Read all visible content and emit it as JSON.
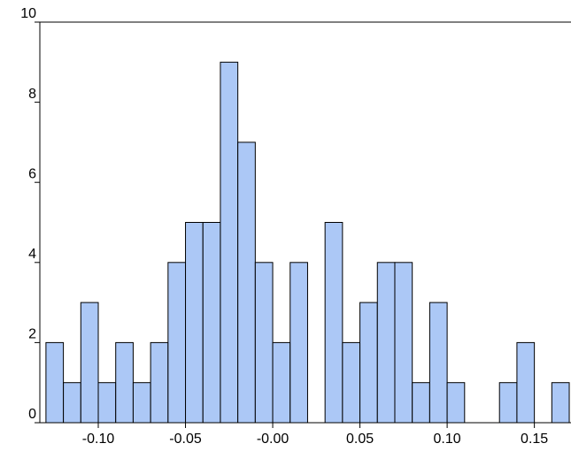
{
  "chart_data": {
    "type": "histogram",
    "bins": [
      -0.13,
      -0.12,
      -0.11,
      -0.1,
      -0.09,
      -0.08,
      -0.07,
      -0.06,
      -0.05,
      -0.04,
      -0.03,
      -0.02,
      -0.01,
      0.0,
      0.01,
      0.02,
      0.03,
      0.04,
      0.05,
      0.06,
      0.07,
      0.08,
      0.09,
      0.1,
      0.11,
      0.12,
      0.13,
      0.14,
      0.15,
      0.16,
      0.17
    ],
    "values": [
      2,
      1,
      3,
      1,
      2,
      1,
      2,
      4,
      5,
      5,
      9,
      7,
      4,
      2,
      4,
      0,
      5,
      2,
      3,
      4,
      4,
      1,
      3,
      1,
      0,
      0,
      1,
      2,
      0,
      1
    ],
    "color": "#a3c2f5",
    "xlim": [
      -0.1335,
      0.171
    ],
    "xticks": [
      {
        "value": -0.1,
        "label": "-0.10"
      },
      {
        "value": -0.05,
        "label": "-0.05"
      },
      {
        "value": 0,
        "label": "-0.00"
      },
      {
        "value": 0.05,
        "label": "0.05"
      },
      {
        "value": 0.1,
        "label": "0.10"
      },
      {
        "value": 0.15,
        "label": "0.15"
      }
    ],
    "ylim": [
      0,
      10
    ],
    "yticks": [
      0,
      2,
      4,
      6,
      8,
      10
    ]
  }
}
